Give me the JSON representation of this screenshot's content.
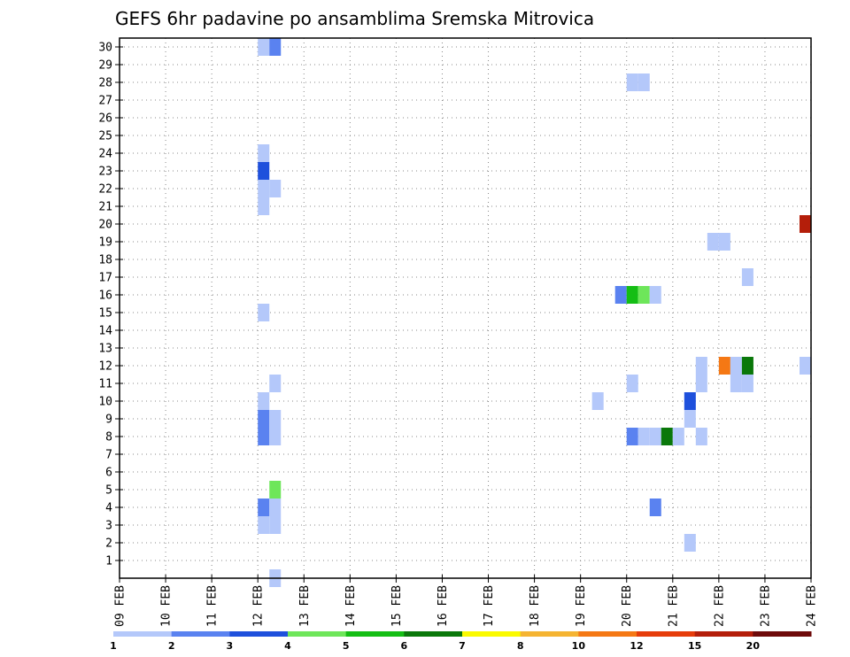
{
  "chart_data": {
    "type": "heatmap",
    "title": "GEFS 6hr padavine po ansamblima Sremska Mitrovica",
    "x_ticks": [
      "09 FEB",
      "10 FEB",
      "11 FEB",
      "12 FEB",
      "13 FEB",
      "14 FEB",
      "15 FEB",
      "16 FEB",
      "17 FEB",
      "18 FEB",
      "19 FEB",
      "20 FEB",
      "21 FEB",
      "22 FEB",
      "23 FEB",
      "24 FEB"
    ],
    "y_range": [
      0,
      30
    ],
    "y_ticks": [
      1,
      2,
      3,
      4,
      5,
      6,
      7,
      8,
      9,
      10,
      11,
      12,
      13,
      14,
      15,
      16,
      17,
      18,
      19,
      20,
      21,
      22,
      23,
      24,
      25,
      26,
      27,
      28,
      29,
      30
    ],
    "grid": true,
    "colorbar": {
      "labels": [
        "1",
        "2",
        "3",
        "4",
        "5",
        "6",
        "7",
        "8",
        "10",
        "12",
        "15",
        "20"
      ],
      "colors": [
        "#b4c8fa",
        "#5a82f0",
        "#1e50dc",
        "#6ee65a",
        "#14be14",
        "#0a780a",
        "#fafa00",
        "#f5b432",
        "#f57814",
        "#e63c0a",
        "#b41e0a",
        "#6e0a0a"
      ]
    },
    "cells": [
      {
        "member": 30,
        "day": "12 FEB",
        "hour": 0,
        "level": 1
      },
      {
        "member": 30,
        "day": "12 FEB",
        "hour": 6,
        "level": 2
      },
      {
        "member": 28,
        "day": "20 FEB",
        "hour": 0,
        "level": 1
      },
      {
        "member": 28,
        "day": "20 FEB",
        "hour": 6,
        "level": 1
      },
      {
        "member": 24,
        "day": "12 FEB",
        "hour": 0,
        "level": 1
      },
      {
        "member": 23,
        "day": "12 FEB",
        "hour": 0,
        "level": 3
      },
      {
        "member": 22,
        "day": "12 FEB",
        "hour": 0,
        "level": 1
      },
      {
        "member": 22,
        "day": "12 FEB",
        "hour": 6,
        "level": 1
      },
      {
        "member": 21,
        "day": "12 FEB",
        "hour": 0,
        "level": 1
      },
      {
        "member": 20,
        "day": "23 FEB",
        "hour": 18,
        "level": "15"
      },
      {
        "member": 19,
        "day": "21 FEB",
        "hour": 18,
        "level": 1
      },
      {
        "member": 19,
        "day": "22 FEB",
        "hour": 0,
        "level": 1
      },
      {
        "member": 17,
        "day": "22 FEB",
        "hour": 12,
        "level": 1
      },
      {
        "member": 16,
        "day": "19 FEB",
        "hour": 18,
        "level": 2
      },
      {
        "member": 16,
        "day": "20 FEB",
        "hour": 0,
        "level": 5
      },
      {
        "member": 16,
        "day": "20 FEB",
        "hour": 6,
        "level": 4
      },
      {
        "member": 16,
        "day": "20 FEB",
        "hour": 12,
        "level": 1
      },
      {
        "member": 15,
        "day": "12 FEB",
        "hour": 0,
        "level": 1
      },
      {
        "member": 12,
        "day": "21 FEB",
        "hour": 12,
        "level": 1
      },
      {
        "member": 12,
        "day": "22 FEB",
        "hour": 0,
        "level": "10"
      },
      {
        "member": 12,
        "day": "22 FEB",
        "hour": 6,
        "level": 1
      },
      {
        "member": 12,
        "day": "22 FEB",
        "hour": 12,
        "level": 6
      },
      {
        "member": 12,
        "day": "23 FEB",
        "hour": 18,
        "level": 1
      },
      {
        "member": 11,
        "day": "12 FEB",
        "hour": 6,
        "level": 1
      },
      {
        "member": 11,
        "day": "20 FEB",
        "hour": 0,
        "level": 1
      },
      {
        "member": 11,
        "day": "21 FEB",
        "hour": 12,
        "level": 1
      },
      {
        "member": 11,
        "day": "22 FEB",
        "hour": 6,
        "level": 1
      },
      {
        "member": 11,
        "day": "22 FEB",
        "hour": 12,
        "level": 1
      },
      {
        "member": 10,
        "day": "12 FEB",
        "hour": 0,
        "level": 1
      },
      {
        "member": 10,
        "day": "19 FEB",
        "hour": 6,
        "level": 1
      },
      {
        "member": 10,
        "day": "21 FEB",
        "hour": 6,
        "level": 3
      },
      {
        "member": 9,
        "day": "12 FEB",
        "hour": 0,
        "level": 2
      },
      {
        "member": 9,
        "day": "12 FEB",
        "hour": 6,
        "level": 1
      },
      {
        "member": 9,
        "day": "21 FEB",
        "hour": 6,
        "level": 1
      },
      {
        "member": 8,
        "day": "12 FEB",
        "hour": 0,
        "level": 2
      },
      {
        "member": 8,
        "day": "12 FEB",
        "hour": 6,
        "level": 1
      },
      {
        "member": 8,
        "day": "20 FEB",
        "hour": 0,
        "level": 2
      },
      {
        "member": 8,
        "day": "20 FEB",
        "hour": 6,
        "level": 1
      },
      {
        "member": 8,
        "day": "20 FEB",
        "hour": 12,
        "level": 1
      },
      {
        "member": 8,
        "day": "20 FEB",
        "hour": 18,
        "level": 6
      },
      {
        "member": 8,
        "day": "21 FEB",
        "hour": 0,
        "level": 1
      },
      {
        "member": 8,
        "day": "21 FEB",
        "hour": 12,
        "level": 1
      },
      {
        "member": 5,
        "day": "12 FEB",
        "hour": 6,
        "level": 4
      },
      {
        "member": 4,
        "day": "12 FEB",
        "hour": 0,
        "level": 2
      },
      {
        "member": 4,
        "day": "12 FEB",
        "hour": 6,
        "level": 1
      },
      {
        "member": 4,
        "day": "20 FEB",
        "hour": 12,
        "level": 2
      },
      {
        "member": 3,
        "day": "12 FEB",
        "hour": 0,
        "level": 1
      },
      {
        "member": 3,
        "day": "12 FEB",
        "hour": 6,
        "level": 1
      },
      {
        "member": 2,
        "day": "21 FEB",
        "hour": 6,
        "level": 1
      },
      {
        "member": 0,
        "day": "12 FEB",
        "hour": 6,
        "level": 1
      }
    ]
  }
}
